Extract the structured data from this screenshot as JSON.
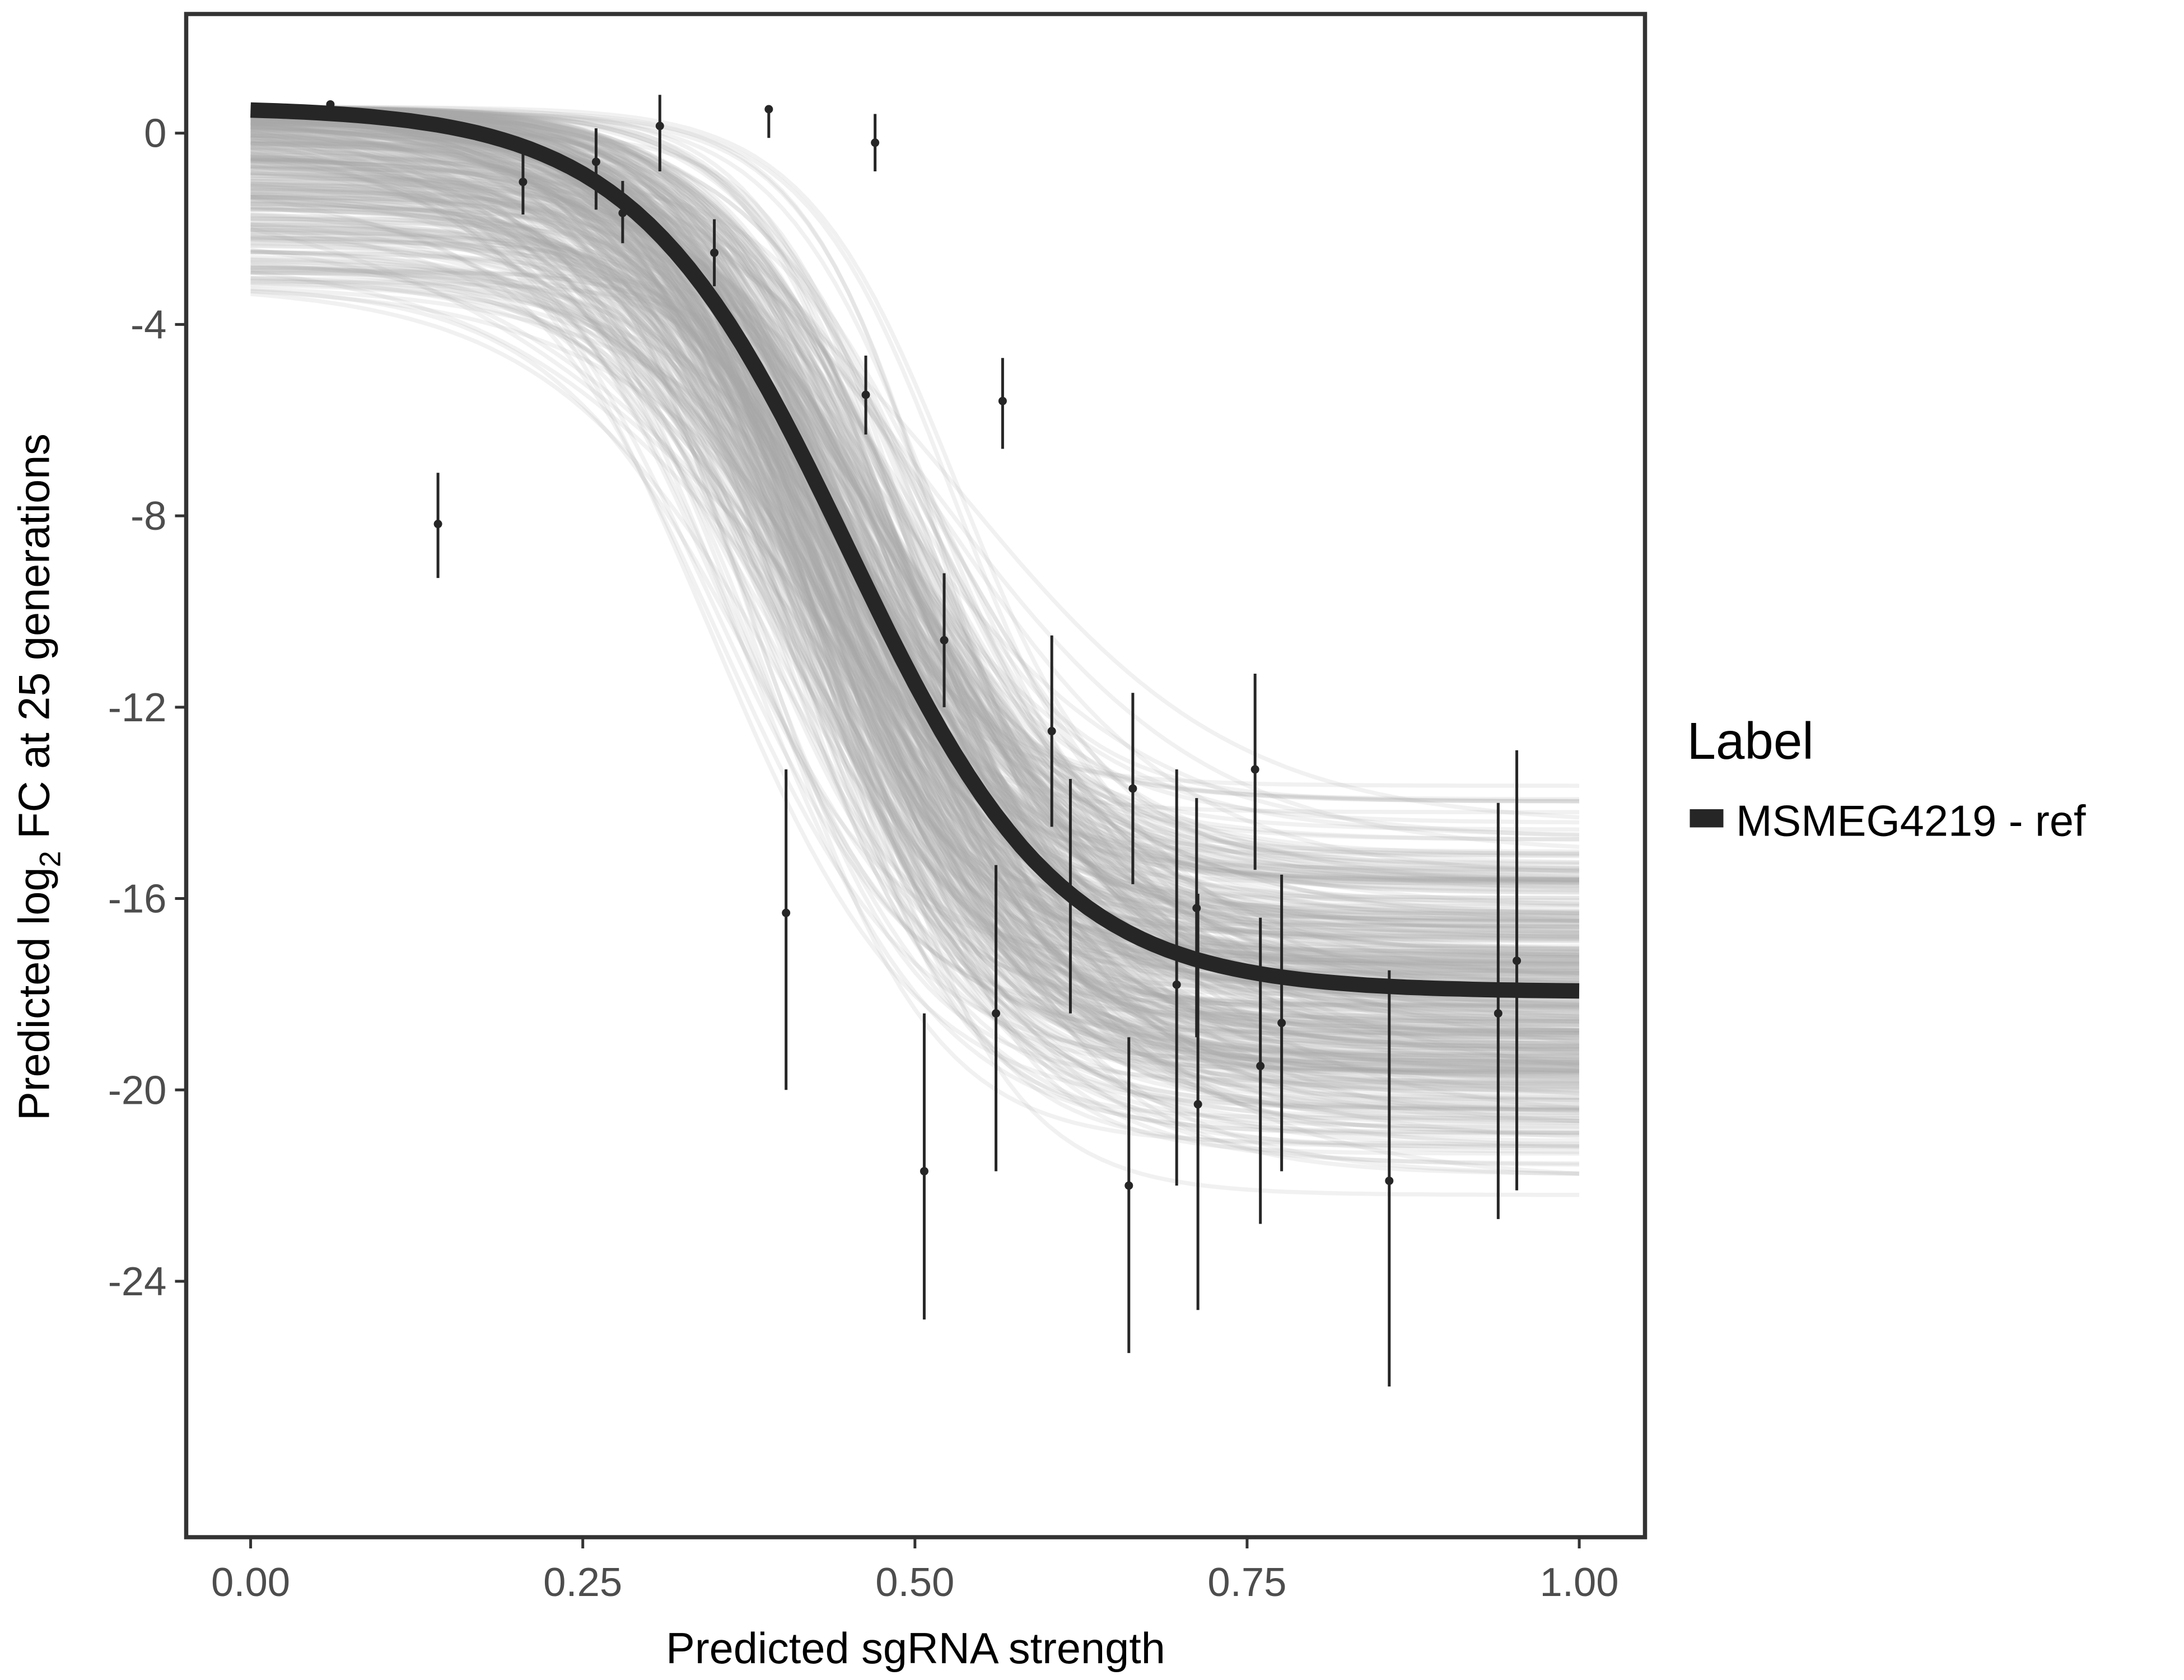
{
  "chart_data": {
    "type": "line",
    "xlabel": "Predicted sgRNA strength",
    "ylabel_parts": [
      "Predicted  log",
      "2",
      " FC at 25 generations"
    ],
    "xlim": [
      -0.0485,
      1.0495
    ],
    "ylim": [
      -29.35,
      2.49
    ],
    "x_ticks": [
      0,
      0.25,
      0.5,
      0.75,
      1.0
    ],
    "x_tick_labels": [
      "0.00",
      "0.25",
      "0.50",
      "0.75",
      "1.00"
    ],
    "y_ticks": [
      0,
      -4,
      -8,
      -12,
      -16,
      -20,
      -24
    ],
    "y_tick_labels": [
      "0",
      "-4",
      "-8",
      "-12",
      "-16",
      "-20",
      "-24"
    ],
    "grid": false,
    "legend": {
      "title": "Label",
      "placement": "right",
      "entries": [
        {
          "label": "MSMEG4219 - ref",
          "color": "#262626"
        }
      ]
    },
    "fit_curve": {
      "model": "logistic",
      "top": 0.55,
      "bottom": -17.95,
      "midpoint": 0.45,
      "slope": 12.5,
      "x_range": [
        0,
        1
      ],
      "color": "#262626"
    },
    "posterior_draws": {
      "count": 400,
      "top_range": [
        -3.2,
        0.55
      ],
      "bottom_range": [
        -23.2,
        -13.0
      ],
      "midpoint_range": [
        0.33,
        0.56
      ],
      "slope_range": [
        6,
        22
      ],
      "color": "#a6a6a6"
    },
    "points": [
      {
        "x": 0.06,
        "y": 0.6,
        "lo": 0.5,
        "hi": 0.6
      },
      {
        "x": 0.141,
        "y": -8.17,
        "lo": -9.3,
        "hi": -7.1
      },
      {
        "x": 0.205,
        "y": -1.02,
        "lo": -1.7,
        "hi": -0.4
      },
      {
        "x": 0.26,
        "y": -0.6,
        "lo": -1.6,
        "hi": 0.1
      },
      {
        "x": 0.28,
        "y": -1.67,
        "lo": -2.3,
        "hi": -1.0
      },
      {
        "x": 0.308,
        "y": 0.15,
        "lo": -0.8,
        "hi": 0.8
      },
      {
        "x": 0.349,
        "y": -2.5,
        "lo": -3.2,
        "hi": -1.8
      },
      {
        "x": 0.39,
        "y": 0.5,
        "lo": -0.1,
        "hi": 0.5
      },
      {
        "x": 0.47,
        "y": -0.2,
        "lo": -0.8,
        "hi": 0.4
      },
      {
        "x": 0.463,
        "y": -5.47,
        "lo": -6.3,
        "hi": -4.65
      },
      {
        "x": 0.566,
        "y": -5.6,
        "lo": -6.6,
        "hi": -4.7
      },
      {
        "x": 0.522,
        "y": -10.6,
        "lo": -12.0,
        "hi": -9.2
      },
      {
        "x": 0.403,
        "y": -16.3,
        "lo": -20.0,
        "hi": -13.3
      },
      {
        "x": 0.507,
        "y": -21.7,
        "lo": -24.8,
        "hi": -18.4
      },
      {
        "x": 0.561,
        "y": -18.4,
        "lo": -21.7,
        "hi": -15.3
      },
      {
        "x": 0.603,
        "y": -12.5,
        "lo": -14.5,
        "hi": -10.5
      },
      {
        "x": 0.617,
        "y": -15.95,
        "lo": -18.4,
        "hi": -13.5
      },
      {
        "x": 0.661,
        "y": -22.0,
        "lo": -25.5,
        "hi": -18.9
      },
      {
        "x": 0.664,
        "y": -13.7,
        "lo": -15.7,
        "hi": -11.7
      },
      {
        "x": 0.697,
        "y": -17.8,
        "lo": -22.0,
        "hi": -13.3
      },
      {
        "x": 0.712,
        "y": -16.2,
        "lo": -18.9,
        "hi": -13.9
      },
      {
        "x": 0.713,
        "y": -20.3,
        "lo": -24.6,
        "hi": -15.9
      },
      {
        "x": 0.756,
        "y": -13.3,
        "lo": -15.4,
        "hi": -11.3
      },
      {
        "x": 0.76,
        "y": -19.5,
        "lo": -22.8,
        "hi": -16.4
      },
      {
        "x": 0.776,
        "y": -18.6,
        "lo": -21.7,
        "hi": -15.5
      },
      {
        "x": 0.857,
        "y": -21.9,
        "lo": -26.2,
        "hi": -17.5
      },
      {
        "x": 0.939,
        "y": -18.4,
        "lo": -22.7,
        "hi": -14.0
      },
      {
        "x": 0.953,
        "y": -17.3,
        "lo": -22.1,
        "hi": -12.9
      }
    ]
  }
}
